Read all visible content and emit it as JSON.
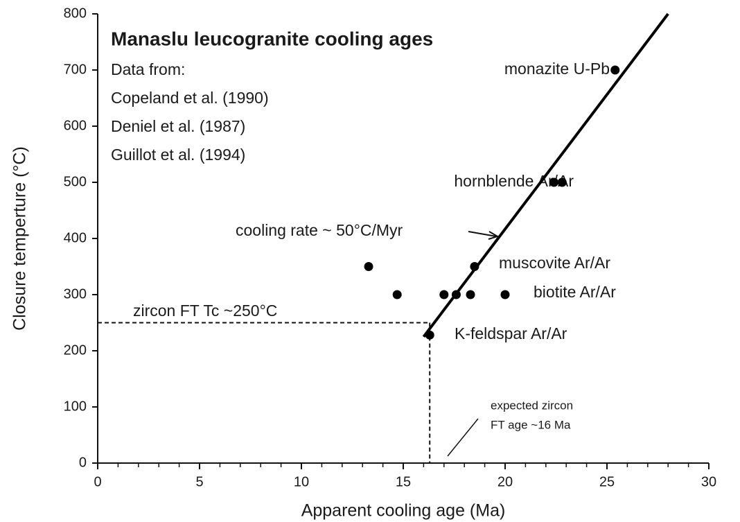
{
  "chart_data": {
    "type": "scatter",
    "title": "Manaslu leucogranite cooling ages",
    "source_heading": "Data from:",
    "sources": [
      "Copeland et al. (1990)",
      "Deniel et al. (1987)",
      "Guillot et al. (1994)"
    ],
    "xlabel": "Apparent cooling age (Ma)",
    "ylabel": "Closure temperture (°C)",
    "xlim": [
      0,
      30
    ],
    "ylim": [
      0,
      800
    ],
    "xticks": [
      0,
      5,
      10,
      15,
      20,
      25,
      30
    ],
    "xminorticks": [
      1,
      2,
      3,
      4,
      6,
      7,
      8,
      9,
      11,
      12,
      13,
      14,
      16,
      17,
      18,
      19,
      21,
      22,
      23,
      24,
      26,
      27,
      28,
      29
    ],
    "yticks": [
      0,
      100,
      200,
      300,
      400,
      500,
      600,
      700,
      800
    ],
    "color": "#000000",
    "series": [
      {
        "x": [
          25.4,
          22.4,
          22.8,
          18.5,
          13.3,
          14.7,
          17.0,
          17.6,
          18.3,
          20.0,
          16.3
        ],
        "values": [
          700,
          500,
          500,
          350,
          350,
          300,
          300,
          300,
          300,
          300,
          228
        ]
      }
    ],
    "fit_line": {
      "x": [
        16.0,
        28.0
      ],
      "y": [
        225,
        800
      ]
    },
    "zircon_tc": {
      "label": "zircon FT Tc ~250°C",
      "y": 250,
      "x": 16.3
    },
    "expected_age": {
      "lines": [
        "expected zircon",
        "FT age ~16 Ma"
      ]
    },
    "annotations": [
      "monazite U-Pb",
      "hornblende Ar/Ar",
      "muscovite Ar/Ar",
      "biotite Ar/Ar",
      "K-feldspar Ar/Ar",
      "cooling rate ~ 50°C/Myr"
    ]
  }
}
